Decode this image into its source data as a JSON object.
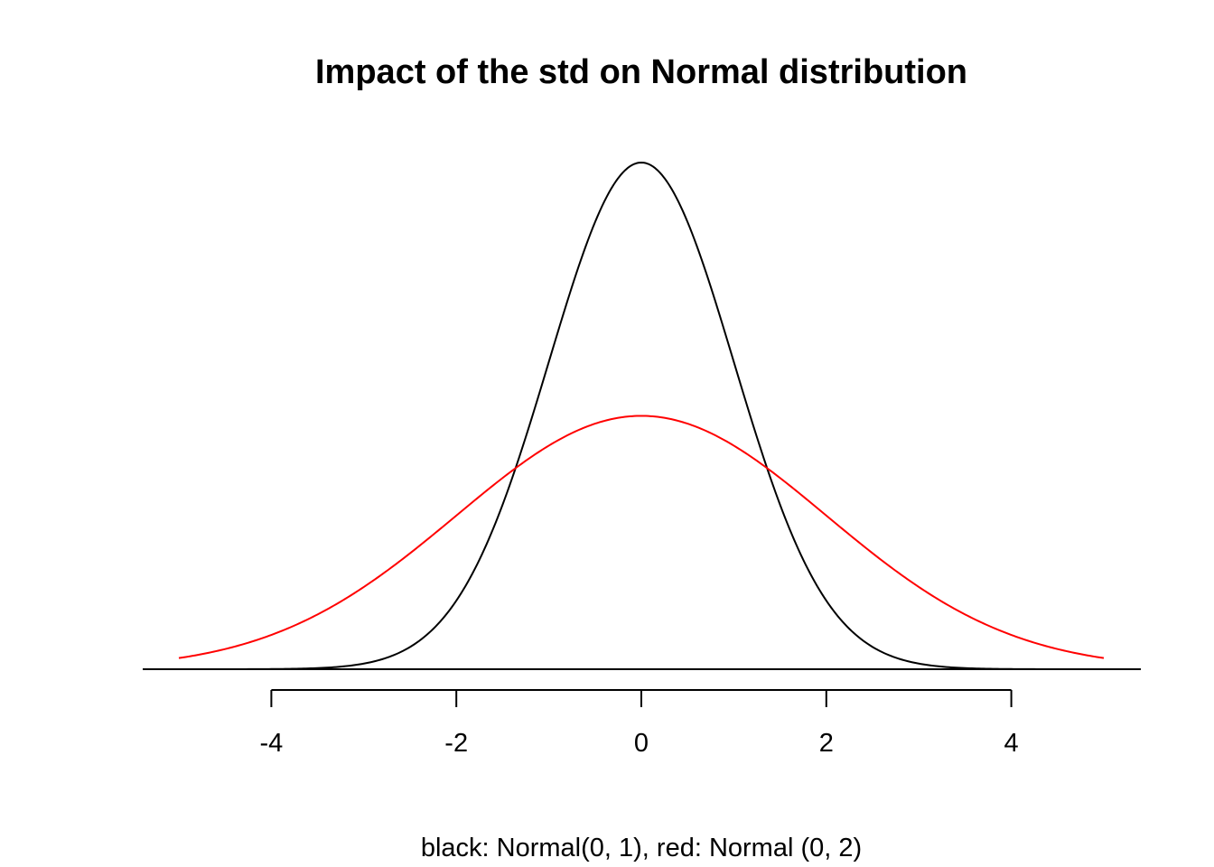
{
  "chart_data": {
    "type": "line",
    "title": "Impact of the std on Normal distribution",
    "xlabel": "black: Normal(0, 1), red: Normal (0, 2)",
    "ylabel": "",
    "xlim": [
      -5,
      5
    ],
    "ylim": [
      0,
      0.3989
    ],
    "x_ticks": [
      -4,
      -2,
      0,
      2,
      4
    ],
    "x_tick_labels": [
      "-4",
      "-2",
      "0",
      "2",
      "4"
    ],
    "y_axis_shown": false,
    "grid": false,
    "legend": "none",
    "baseline_y": 0,
    "series": [
      {
        "color": "#000000",
        "mean": 0,
        "sd": 1,
        "x": [
          -5,
          -4.5,
          -4,
          -3.5,
          -3,
          -2.5,
          -2,
          -1.5,
          -1,
          -0.5,
          0,
          0.5,
          1,
          1.5,
          2,
          2.5,
          3,
          3.5,
          4,
          4.5,
          5
        ],
        "y": [
          1.5e-06,
          1.6e-05,
          0.000134,
          0.000873,
          0.004432,
          0.017528,
          0.053991,
          0.129518,
          0.241971,
          0.352065,
          0.398942,
          0.352065,
          0.241971,
          0.129518,
          0.053991,
          0.017528,
          0.004432,
          0.000873,
          0.000134,
          1.6e-05,
          1.5e-06
        ]
      },
      {
        "color": "#ff0000",
        "mean": 0,
        "sd": 2,
        "x": [
          -5,
          -4.5,
          -4,
          -3.5,
          -3,
          -2.5,
          -2,
          -1.5,
          -1,
          -0.5,
          0,
          0.5,
          1,
          1.5,
          2,
          2.5,
          3,
          3.5,
          4,
          4.5,
          5
        ],
        "y": [
          0.008764,
          0.015984,
          0.026995,
          0.042201,
          0.064759,
          0.091325,
          0.120985,
          0.150569,
          0.176033,
          0.193334,
          0.199471,
          0.193334,
          0.176033,
          0.150569,
          0.120985,
          0.091325,
          0.064759,
          0.042201,
          0.026995,
          0.015984,
          0.008764
        ]
      }
    ]
  }
}
